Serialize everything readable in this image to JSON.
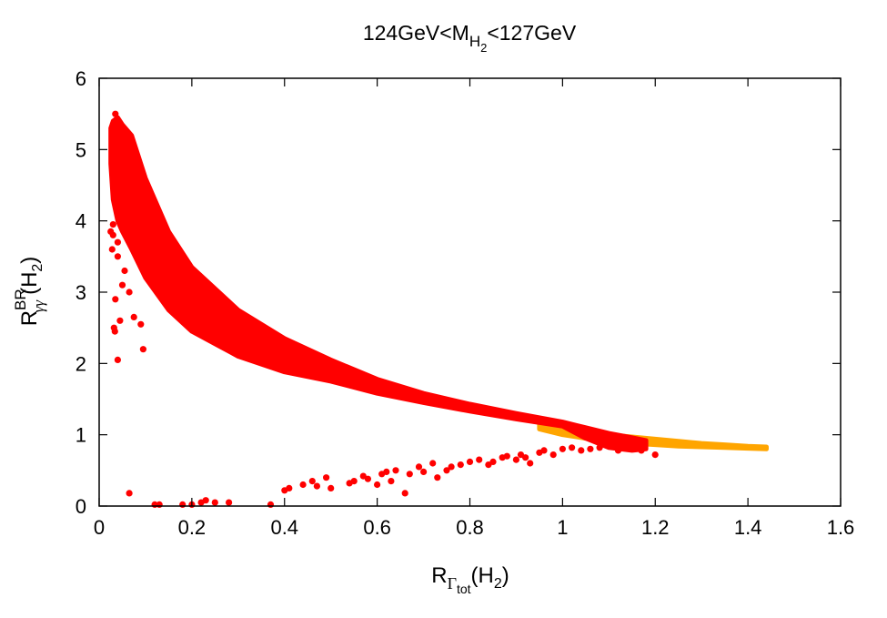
{
  "chart_data": {
    "type": "scatter",
    "title": {
      "prefix": "124GeV<M",
      "subscript": "H",
      "subsubscript": "2",
      "suffix": "<127GeV"
    },
    "xlabel": {
      "main": "R",
      "subscript": "Γ",
      "subsubscript": "tot",
      "suffix": "(H",
      "suffix_sub": "2",
      "suffix_end": ")"
    },
    "ylabel": {
      "main": "R",
      "superscript": "BR",
      "subscript": "γγ",
      "suffix": "(H",
      "suffix_sub": "2",
      "suffix_end": ")"
    },
    "xlim": [
      0,
      1.6
    ],
    "ylim": [
      0,
      6
    ],
    "xticks": [
      0,
      0.2,
      0.4,
      0.6,
      0.8,
      1,
      1.2,
      1.4,
      1.6
    ],
    "xtick_labels": [
      "0",
      "0.2",
      "0.4",
      "0.6",
      "0.8",
      "1",
      "1.2",
      "1.4",
      "1.6"
    ],
    "yticks": [
      0,
      1,
      2,
      3,
      4,
      5,
      6
    ],
    "ytick_labels": [
      "0",
      "1",
      "2",
      "3",
      "4",
      "5",
      "6"
    ],
    "grid": false,
    "legend": "none",
    "series": [
      {
        "name": "orange-band",
        "color": "#ffa500",
        "kind": "band",
        "x": [
          0.95,
          1.0,
          1.05,
          1.1,
          1.15,
          1.2,
          1.25,
          1.3,
          1.35,
          1.4,
          1.44
        ],
        "y_low": [
          1.08,
          1.0,
          0.95,
          0.91,
          0.88,
          0.86,
          0.84,
          0.83,
          0.82,
          0.81,
          0.8
        ],
        "y_high": [
          1.18,
          1.12,
          1.05,
          1.0,
          0.97,
          0.94,
          0.91,
          0.88,
          0.86,
          0.84,
          0.83
        ]
      },
      {
        "name": "red-band",
        "color": "#ff0000",
        "kind": "band",
        "x": [
          0.025,
          0.03,
          0.04,
          0.05,
          0.07,
          0.1,
          0.15,
          0.2,
          0.3,
          0.4,
          0.5,
          0.6,
          0.7,
          0.8,
          0.9,
          1.0,
          1.05,
          1.1,
          1.15,
          1.18
        ],
        "y_low": [
          4.8,
          4.3,
          4.0,
          3.85,
          3.6,
          3.2,
          2.75,
          2.45,
          2.1,
          1.88,
          1.75,
          1.58,
          1.45,
          1.33,
          1.22,
          1.12,
          0.95,
          0.82,
          0.78,
          0.8
        ],
        "y_high": [
          5.3,
          5.4,
          5.45,
          5.35,
          5.2,
          4.6,
          3.85,
          3.35,
          2.75,
          2.35,
          2.05,
          1.78,
          1.58,
          1.43,
          1.3,
          1.18,
          1.1,
          1.02,
          0.96,
          0.92
        ]
      },
      {
        "name": "red-scatter-left",
        "color": "#ff0000",
        "kind": "points",
        "x": [
          0.035,
          0.03,
          0.025,
          0.04,
          0.035,
          0.045,
          0.04,
          0.03,
          0.05,
          0.028,
          0.055,
          0.065,
          0.075,
          0.09,
          0.095,
          0.04,
          0.034,
          0.032
        ],
        "y": [
          5.5,
          3.95,
          3.85,
          3.5,
          2.9,
          2.6,
          2.05,
          3.8,
          3.1,
          3.6,
          3.3,
          3.0,
          2.65,
          2.55,
          2.2,
          3.7,
          2.45,
          2.5
        ]
      },
      {
        "name": "red-scatter-bottom",
        "color": "#ff0000",
        "kind": "points",
        "x": [
          0.065,
          0.12,
          0.13,
          0.18,
          0.2,
          0.22,
          0.23,
          0.25,
          0.28,
          0.37,
          0.4,
          0.41,
          0.44,
          0.46,
          0.47,
          0.49,
          0.5,
          0.54,
          0.55,
          0.57,
          0.58,
          0.6,
          0.61,
          0.62,
          0.63,
          0.64,
          0.66,
          0.67,
          0.69,
          0.7,
          0.72,
          0.73,
          0.75,
          0.76,
          0.78,
          0.8,
          0.82,
          0.84,
          0.85,
          0.87,
          0.88,
          0.9,
          0.91,
          0.92,
          0.93,
          0.95,
          0.96,
          0.98,
          1.0,
          1.02,
          1.04,
          1.06,
          1.08,
          1.1,
          1.12,
          1.15,
          1.17,
          1.2
        ],
        "y": [
          0.18,
          0.02,
          0.02,
          0.02,
          0.02,
          0.05,
          0.08,
          0.05,
          0.05,
          0.02,
          0.22,
          0.25,
          0.3,
          0.35,
          0.28,
          0.4,
          0.25,
          0.32,
          0.35,
          0.42,
          0.38,
          0.3,
          0.45,
          0.48,
          0.35,
          0.5,
          0.18,
          0.45,
          0.55,
          0.48,
          0.6,
          0.4,
          0.5,
          0.55,
          0.58,
          0.62,
          0.65,
          0.58,
          0.62,
          0.68,
          0.7,
          0.65,
          0.72,
          0.68,
          0.6,
          0.75,
          0.78,
          0.72,
          0.8,
          0.82,
          0.78,
          0.8,
          0.82,
          0.84,
          0.78,
          0.82,
          0.78,
          0.72
        ]
      }
    ]
  }
}
